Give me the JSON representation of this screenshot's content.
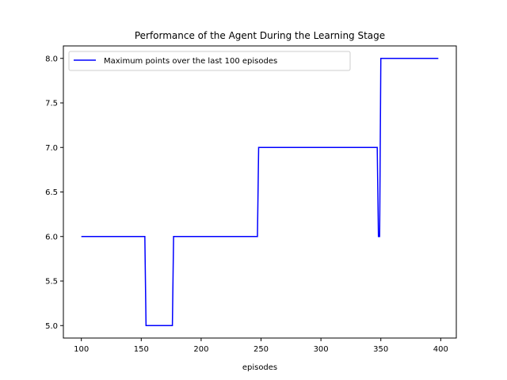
{
  "chart_data": {
    "type": "line",
    "title": "Performance of the Agent During the Learning Stage",
    "xlabel": "episodes",
    "ylabel": "",
    "xlim": [
      85,
      413
    ],
    "ylim": [
      4.86,
      8.14
    ],
    "xticks": [
      100,
      150,
      200,
      250,
      300,
      350,
      400
    ],
    "xtick_labels": [
      "100",
      "150",
      "200",
      "250",
      "300",
      "350",
      "400"
    ],
    "yticks": [
      5.0,
      5.5,
      6.0,
      6.5,
      7.0,
      7.5,
      8.0
    ],
    "ytick_labels": [
      "5.0",
      "5.5",
      "6.0",
      "6.5",
      "7.0",
      "7.5",
      "8.0"
    ],
    "grid": false,
    "legend_position": "top-left",
    "series": [
      {
        "name": "Maximum points over the last 100 episodes",
        "color": "#0000ff",
        "x": [
          100,
          153,
          154,
          176,
          177,
          247,
          248,
          347,
          348,
          349,
          350,
          398
        ],
        "y": [
          6,
          6,
          5,
          5,
          6,
          6,
          7,
          7,
          6,
          6,
          8,
          8
        ]
      }
    ]
  }
}
